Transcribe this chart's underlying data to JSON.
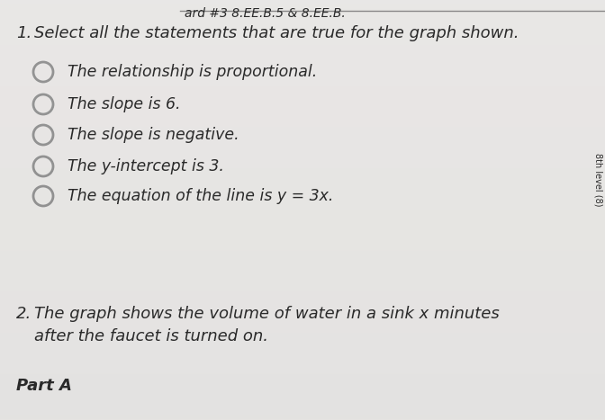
{
  "background_color": "#e8e5e2",
  "header_text": "ard #3 8.EE.B.5 & 8.EE.B.",
  "header_fontsize": 10,
  "q1_number": "1.",
  "q1_prompt_line1": "Select all the statements that are true for the graph shown.",
  "q1_prompt_fontsize": 13,
  "options": [
    "The relationship is proportional.",
    "The slope is 6.",
    "The slope is negative.",
    "The y-intercept is 3.",
    "The equation of the line is y = 3x."
  ],
  "option_fontsize": 12.5,
  "q2_number": "2.",
  "q2_text_line1": "The graph shows the volume of water in a sink x minutes",
  "q2_text_line2": "after the faucet is turned on.",
  "q2_fontsize": 13,
  "part_a_text": "Part A",
  "part_a_fontsize": 13,
  "side_label": "8th level (8)",
  "text_color": "#2a2a2a",
  "line_color": "#555555",
  "circle_color": "#2a2a2a"
}
